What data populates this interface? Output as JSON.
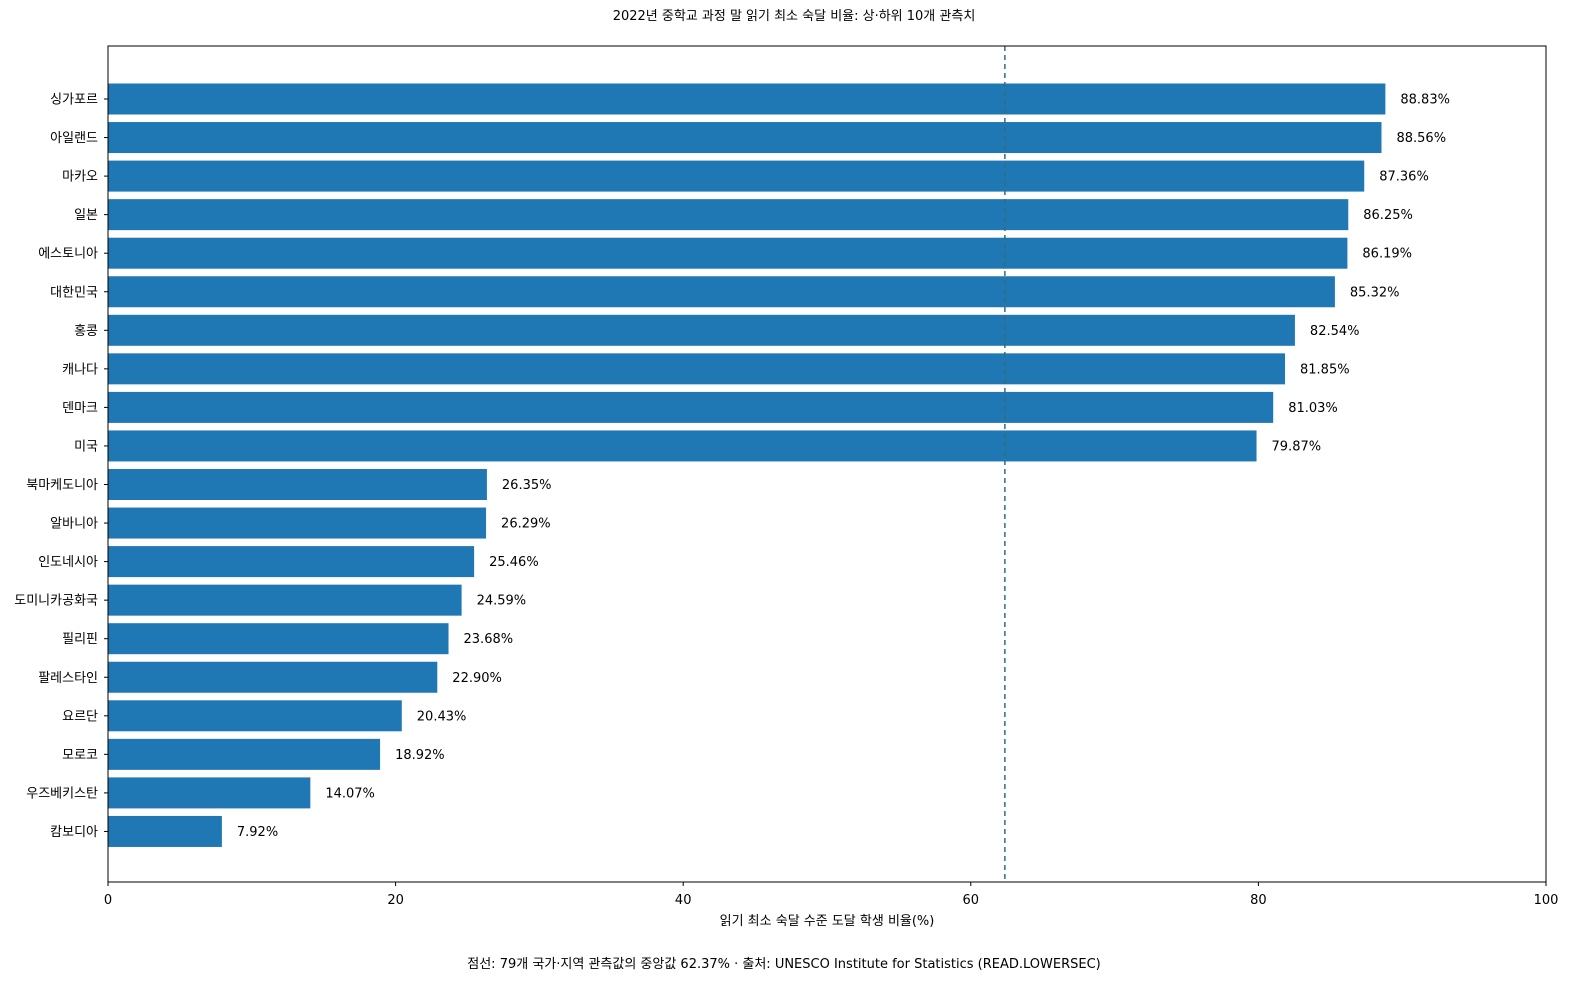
{
  "chart_data": {
    "type": "bar",
    "orientation": "horizontal",
    "title": "2022년 중학교 과정 말 읽기 최소 숙달 비율: 상·하위 10개 관측치",
    "xlabel": "읽기 최소 숙달 수준 도달 학생 비율(%)",
    "ylabel": "",
    "xlim": [
      0,
      100
    ],
    "xticks": [
      0,
      20,
      40,
      60,
      80,
      100
    ],
    "grid": false,
    "bar_color": "#1f77b4",
    "reference_line": {
      "value": 62.37,
      "style": "dashed",
      "color": "#2f6f7f"
    },
    "categories": [
      "싱가포르",
      "아일랜드",
      "마카오",
      "일본",
      "에스토니아",
      "대한민국",
      "홍콩",
      "캐나다",
      "덴마크",
      "미국",
      "북마케도니아",
      "알바니아",
      "인도네시아",
      "도미니카공화국",
      "필리핀",
      "팔레스타인",
      "요르단",
      "모로코",
      "우즈베키스탄",
      "캄보디아"
    ],
    "values": [
      88.83,
      88.56,
      87.36,
      86.25,
      86.19,
      85.32,
      82.54,
      81.85,
      81.03,
      79.87,
      26.35,
      26.29,
      25.46,
      24.59,
      23.68,
      22.9,
      20.43,
      18.92,
      14.07,
      7.92
    ],
    "value_labels": [
      "88.83%",
      "88.56%",
      "87.36%",
      "86.25%",
      "86.19%",
      "85.32%",
      "82.54%",
      "81.85%",
      "81.03%",
      "79.87%",
      "26.35%",
      "26.29%",
      "25.46%",
      "24.59%",
      "23.68%",
      "22.90%",
      "20.43%",
      "18.92%",
      "14.07%",
      "7.92%"
    ],
    "footnote": "점선: 79개 국가·지역 관측값의 중앙값 62.37% · 출처: UNESCO Institute for Statistics (READ.LOWERSEC)"
  }
}
